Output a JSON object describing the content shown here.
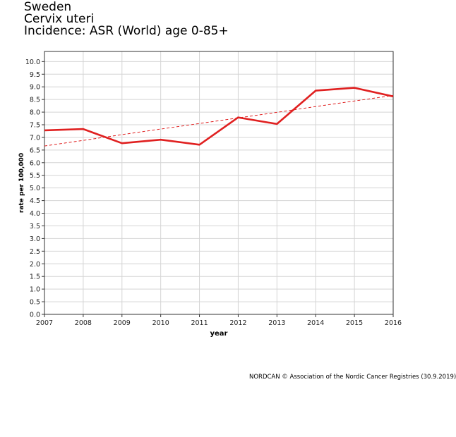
{
  "header": {
    "country": "Sweden",
    "site": "Cervix uteri",
    "measure": "Incidence: ASR (World) age 0-85+"
  },
  "footer": {
    "credit": "NORDCAN © Association of the Nordic Cancer Registries (30.9.2019)"
  },
  "chart_data": {
    "type": "line",
    "xlabel": "year",
    "ylabel": "rate per 100,000",
    "x": [
      2007,
      2008,
      2009,
      2010,
      2011,
      2012,
      2013,
      2014,
      2015,
      2016
    ],
    "xlim": [
      2007,
      2016
    ],
    "ylim": [
      0,
      10.4
    ],
    "yticks": [
      0.0,
      0.5,
      1.0,
      1.5,
      2.0,
      2.5,
      3.0,
      3.5,
      4.0,
      4.5,
      5.0,
      5.5,
      6.0,
      6.5,
      7.0,
      7.5,
      8.0,
      8.5,
      9.0,
      9.5,
      10.0
    ],
    "ytick_labels": [
      "0.0",
      "0.5",
      "1.0",
      "1.5",
      "2.0",
      "2.5",
      "3.0",
      "3.5",
      "4.0",
      "4.5",
      "5.0",
      "5.5",
      "6.0",
      "6.5",
      "7.0",
      "7.5",
      "8.0",
      "8.5",
      "9.0",
      "9.5",
      "10.0"
    ],
    "grid": true,
    "series": [
      {
        "values": [
          7.28,
          7.33,
          6.77,
          6.91,
          6.71,
          7.79,
          7.53,
          8.85,
          8.96,
          8.62
        ],
        "color": "#e02020",
        "style": "solid"
      },
      {
        "values": [
          6.66,
          6.88,
          7.11,
          7.33,
          7.55,
          7.77,
          7.99,
          8.22,
          8.44,
          8.66
        ],
        "color": "#e02020",
        "style": "dashed"
      }
    ]
  }
}
